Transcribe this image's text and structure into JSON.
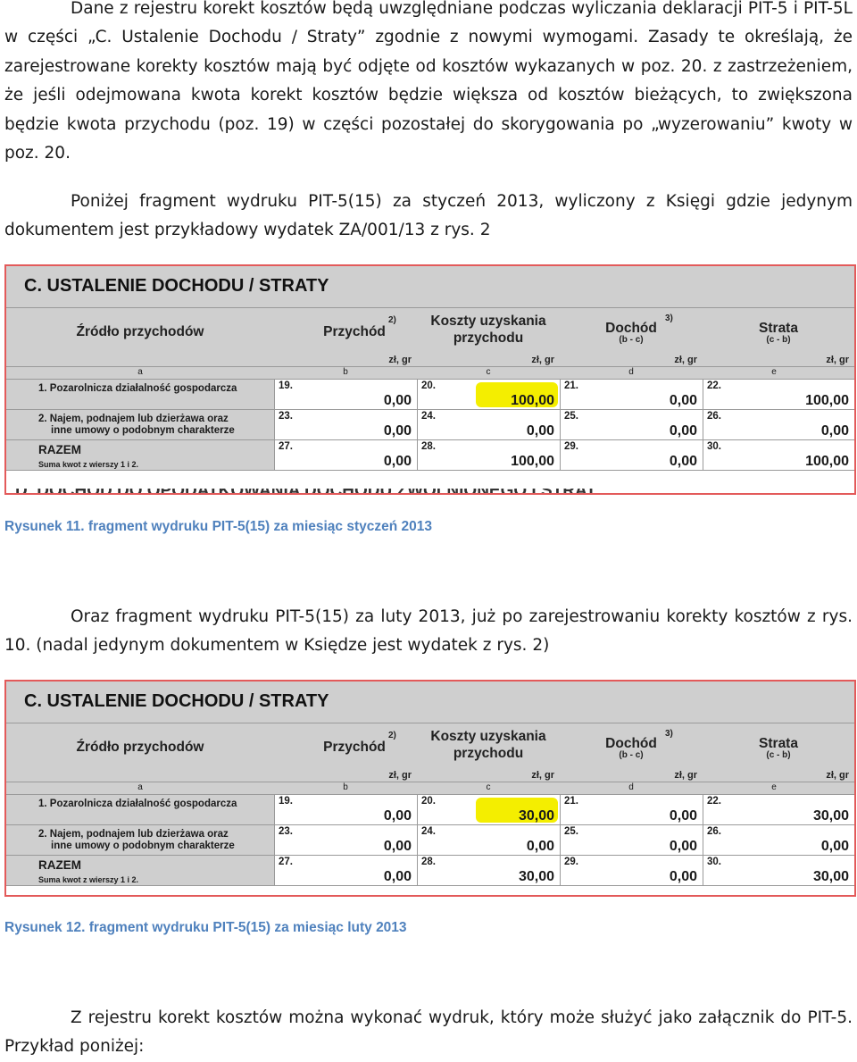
{
  "paragraphs": {
    "p1": "Dane z rejestru korekt kosztów będą uwzględniane podczas wyliczania deklaracji PIT-5 i PIT-5L w części „C. Ustalenie Dochodu / Straty” zgodnie z nowymi wymogami. Zasady te określają, że zarejestrowane korekty kosztów mają być odjęte od kosztów wykazanych w poz. 20. z zastrzeżeniem, że jeśli odejmowana kwota korekt kosztów będzie większa od kosztów bieżących, to zwiększona będzie kwota przychodu (poz. 19) w części pozostałej do skorygowania po „wyzerowaniu” kwoty w poz. 20.",
    "p2": "Poniżej fragment wydruku PIT-5(15) za styczeń 2013, wyliczony z Księgi gdzie jedynym dokumentem jest przykładowy wydatek ZA/001/13 z rys. 2",
    "p3": "Oraz fragment wydruku PIT-5(15) za luty 2013, już po zarejestrowaniu korekty kosztów z rys. 10. (nadal jedynym dokumentem w Księdze jest wydatek z rys. 2)",
    "p4": "Z rejestru korekt kosztów można wykonać wydruk, który może służyć jako załącznik do PIT-5. Przykład poniżej:"
  },
  "captions": {
    "c1": "Rysunek 11. fragment wydruku PIT-5(15) za miesiąc styczeń 2013",
    "c2": "Rysunek 12. fragment wydruku PIT-5(15) za miesiąc luty 2013"
  },
  "form_common": {
    "title": "C. USTALENIE DOCHODU / STRATY",
    "next_section_partial": "D. DOCHÓD DO OPODATKOWANIA DOCHODU ZWOLNIONEGO I STRAT",
    "headers": {
      "zrodlo": "Źródło przychodów",
      "przychod": "Przychód",
      "przychod_sup": "2)",
      "koszty_line1": "Koszty uzyskania",
      "koszty_line2": "przychodu",
      "dochod": "Dochód",
      "dochod_sup": "3)",
      "dochod_sub": "(b - c)",
      "strata": "Strata",
      "strata_sub": "(c - b)",
      "zl_gr": "zł,   gr"
    },
    "letters": [
      "a",
      "b",
      "c",
      "d",
      "e"
    ],
    "rows": {
      "r1": "1. Pozarolnicza działalność gospodarcza",
      "r2_line1": "2. Najem, podnajem lub dzierżawa oraz",
      "r2_line2": "inne umowy o podobnym charakterze",
      "r3": "RAZEM",
      "r3_small": "Suma kwot z wierszy 1 i 2."
    }
  },
  "form1": {
    "cells": [
      {
        "num": "19.",
        "val": "0,00"
      },
      {
        "num": "20.",
        "val": "100,00"
      },
      {
        "num": "21.",
        "val": "0,00"
      },
      {
        "num": "22.",
        "val": "100,00"
      },
      {
        "num": "23.",
        "val": "0,00"
      },
      {
        "num": "24.",
        "val": "0,00"
      },
      {
        "num": "25.",
        "val": "0,00"
      },
      {
        "num": "26.",
        "val": "0,00"
      },
      {
        "num": "27.",
        "val": "0,00"
      },
      {
        "num": "28.",
        "val": "100,00"
      },
      {
        "num": "29.",
        "val": "0,00"
      },
      {
        "num": "30.",
        "val": "100,00"
      }
    ]
  },
  "form2": {
    "cells": [
      {
        "num": "19.",
        "val": "0,00"
      },
      {
        "num": "20.",
        "val": "30,00"
      },
      {
        "num": "21.",
        "val": "0,00"
      },
      {
        "num": "22.",
        "val": "30,00"
      },
      {
        "num": "23.",
        "val": "0,00"
      },
      {
        "num": "24.",
        "val": "0,00"
      },
      {
        "num": "25.",
        "val": "0,00"
      },
      {
        "num": "26.",
        "val": "0,00"
      },
      {
        "num": "27.",
        "val": "0,00"
      },
      {
        "num": "28.",
        "val": "30,00"
      },
      {
        "num": "29.",
        "val": "0,00"
      },
      {
        "num": "30.",
        "val": "30,00"
      }
    ]
  },
  "colors": {
    "caption": "#4f81bd",
    "highlight": "#f4ee00",
    "form_border": "#e35a5a",
    "form_gray": "#cfcfcf"
  }
}
